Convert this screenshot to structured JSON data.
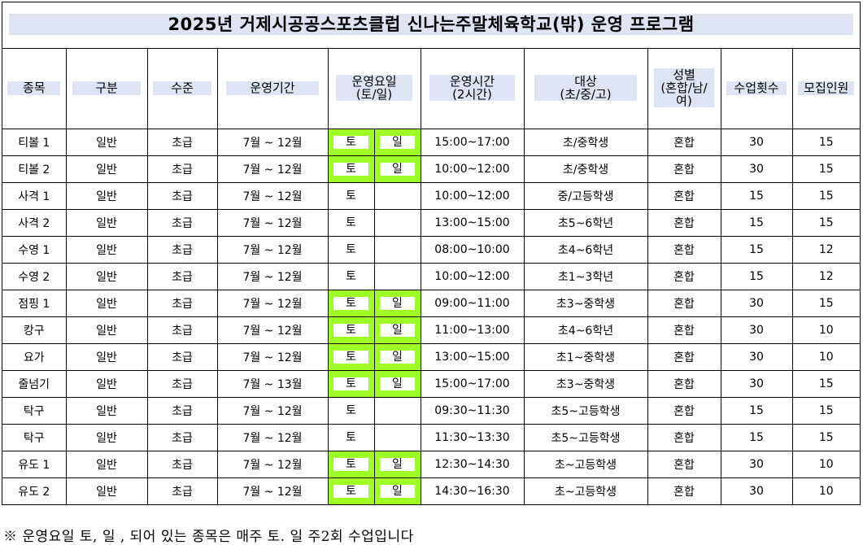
{
  "title": "2025년 거제시공공스포츠클럽 신나는주말체육학교(밖) 운영 프로그램",
  "headers": {
    "sport": "종목",
    "category": "구분",
    "level": "수준",
    "period": "운영기간",
    "days_line1": "운영요일",
    "days_line2": "(토/일)",
    "time_line1": "운영시간",
    "time_line2": "(2시간)",
    "target_line1": "대상",
    "target_line2": "(초/중/고)",
    "gender_line1": "성별",
    "gender_line2": "(혼합/남/",
    "gender_line3": "여)",
    "sessions": "수업횟수",
    "capacity": "모집인원"
  },
  "rows": [
    {
      "sport": "티볼 1",
      "category": "일반",
      "level": "초급",
      "period": "7월 ~ 12월",
      "sat": "토",
      "sun": "일",
      "highlight": true,
      "time": "15:00~17:00",
      "target": "초/중학생",
      "gender": "혼합",
      "sessions": "30",
      "capacity": "15"
    },
    {
      "sport": "티볼 2",
      "category": "일반",
      "level": "초급",
      "period": "7월 ~ 12월",
      "sat": "토",
      "sun": "일",
      "highlight": true,
      "time": "10:00~12:00",
      "target": "초/중학생",
      "gender": "혼합",
      "sessions": "30",
      "capacity": "15"
    },
    {
      "sport": "사격 1",
      "category": "일반",
      "level": "초급",
      "period": "7월 ~ 12월",
      "sat": "토",
      "sun": "",
      "highlight": false,
      "time": "10:00~12:00",
      "target": "중/고등학생",
      "gender": "혼합",
      "sessions": "15",
      "capacity": "15"
    },
    {
      "sport": "사격 2",
      "category": "일반",
      "level": "초급",
      "period": "7월 ~ 12월",
      "sat": "토",
      "sun": "",
      "highlight": false,
      "time": "13:00~15:00",
      "target": "초5~6학년",
      "gender": "혼합",
      "sessions": "15",
      "capacity": "15"
    },
    {
      "sport": "수영 1",
      "category": "일반",
      "level": "초급",
      "period": "7월 ~ 12월",
      "sat": "토",
      "sun": "",
      "highlight": false,
      "time": "08:00~10:00",
      "target": "초4~6학년",
      "gender": "혼합",
      "sessions": "15",
      "capacity": "12"
    },
    {
      "sport": "수영 2",
      "category": "일반",
      "level": "초급",
      "period": "7월 ~ 12월",
      "sat": "토",
      "sun": "",
      "highlight": false,
      "time": "10:00~12:00",
      "target": "초1~3학년",
      "gender": "혼합",
      "sessions": "15",
      "capacity": "12"
    },
    {
      "sport": "점핑 1",
      "category": "일반",
      "level": "초급",
      "period": "7월 ~ 12월",
      "sat": "토",
      "sun": "일",
      "highlight": true,
      "time": "09:00~11:00",
      "target": "초3~중학생",
      "gender": "혼합",
      "sessions": "30",
      "capacity": "15"
    },
    {
      "sport": "캉구",
      "category": "일반",
      "level": "초급",
      "period": "7월 ~ 12월",
      "sat": "토",
      "sun": "일",
      "highlight": true,
      "time": "11:00~13:00",
      "target": "초4~6학년",
      "gender": "혼합",
      "sessions": "30",
      "capacity": "10"
    },
    {
      "sport": "요가",
      "category": "일반",
      "level": "초급",
      "period": "7월 ~ 12월",
      "sat": "토",
      "sun": "일",
      "highlight": true,
      "time": "13:00~15:00",
      "target": "초1~중학생",
      "gender": "혼합",
      "sessions": "30",
      "capacity": "10"
    },
    {
      "sport": "줄넘기",
      "category": "일반",
      "level": "초급",
      "period": "7월 ~ 13월",
      "sat": "토",
      "sun": "일",
      "highlight": true,
      "time": "15:00~17:00",
      "target": "초3~중학생",
      "gender": "혼합",
      "sessions": "30",
      "capacity": "15"
    },
    {
      "sport": "탁구",
      "category": "일반",
      "level": "초급",
      "period": "7월 ~ 12월",
      "sat": "토",
      "sun": "",
      "highlight": false,
      "time": "09:30~11:30",
      "target": "초5~고등학생",
      "gender": "혼합",
      "sessions": "15",
      "capacity": "15"
    },
    {
      "sport": "탁구",
      "category": "일반",
      "level": "초급",
      "period": "7월 ~ 12월",
      "sat": "토",
      "sun": "",
      "highlight": false,
      "time": "11:30~13:30",
      "target": "초5~고등학생",
      "gender": "혼합",
      "sessions": "15",
      "capacity": "15"
    },
    {
      "sport": "유도 1",
      "category": "일반",
      "level": "초급",
      "period": "7월 ~ 12월",
      "sat": "토",
      "sun": "일",
      "highlight": true,
      "time": "12:30~14:30",
      "target": "초~고등학생",
      "gender": "혼합",
      "sessions": "30",
      "capacity": "10"
    },
    {
      "sport": "유도 2",
      "category": "일반",
      "level": "초급",
      "period": "7월 ~ 12월",
      "sat": "토",
      "sun": "일",
      "highlight": true,
      "time": "14:30~16:30",
      "target": "초~고등학생",
      "gender": "혼합",
      "sessions": "30",
      "capacity": "10"
    }
  ],
  "note": "※  운영요일 토, 일 , 되어 있는 종목은 매주 토. 일 주2회 수업입니다",
  "colors": {
    "header_fill": "#dde4f3",
    "day_highlight": "#9dfd24"
  }
}
